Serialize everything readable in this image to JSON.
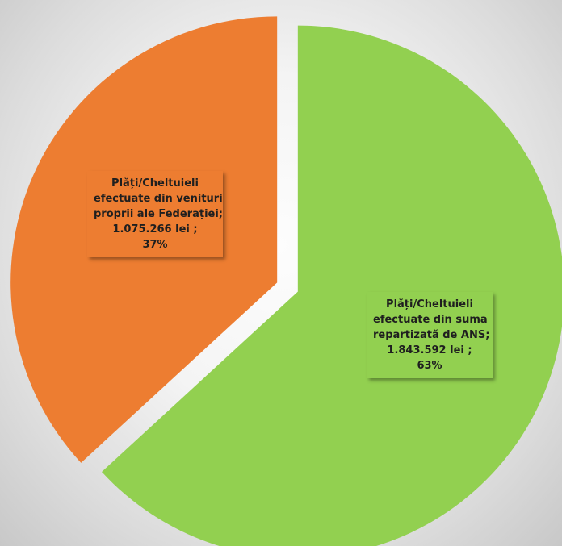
{
  "chart_data": {
    "type": "pie",
    "exploded": true,
    "slices": [
      {
        "label_lines": [
          "Plăți/Cheltuieli",
          "efectuate din venituri",
          "proprii ale Federației;",
          "1.075.266 lei ;",
          "37%"
        ],
        "value": 1075266,
        "percent": 37,
        "color": "#ed7d31"
      },
      {
        "label_lines": [
          "Plăți/Cheltuieli",
          "efectuate din suma",
          "repartizată de ANS;",
          "1.843.592 lei ;",
          "63%"
        ],
        "value": 1843592,
        "percent": 63,
        "color": "#92d050"
      }
    ],
    "legend": "none"
  }
}
